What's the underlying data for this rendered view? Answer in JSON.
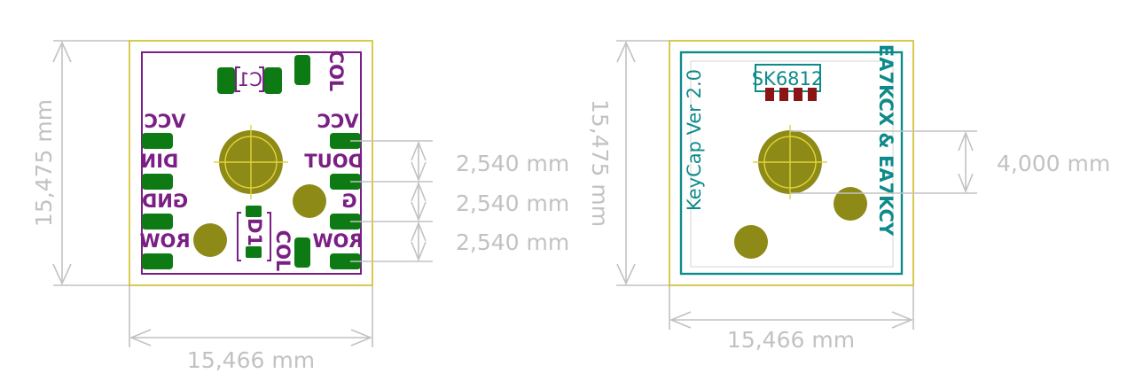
{
  "colors": {
    "dimension": "#c2c2c2",
    "board_outline": "#d3c53a",
    "back_silk": "#7a1f84",
    "front_silk": "#0f8a8a",
    "pad": "#0d7a13",
    "hole": "#8d8a17",
    "led_pad": "#8b1515",
    "marker": "#e2d33a"
  },
  "left_board": {
    "labels": {
      "c1": "C1",
      "col_top": "COL",
      "vcc_left": "VCC",
      "din": "DIN",
      "gnd": "GND",
      "row_left": "ROW",
      "vcc_right": "VCC",
      "dout": "DOUT",
      "g": "G",
      "row_right": "ROW",
      "d1": "D1",
      "col_bottom": "COL"
    },
    "dimensions": {
      "width": "15,466 mm",
      "height": "15,475 mm",
      "pitch_1": "2,540 mm",
      "pitch_2": "2,540 mm",
      "pitch_3": "2,540 mm"
    }
  },
  "right_board": {
    "labels": {
      "led": "SK6812",
      "version": "KeyCap Ver 2.0",
      "authors": "EA7KCX  & EA7KCY"
    },
    "dimensions": {
      "width": "15,466 mm",
      "height": "15,475 mm",
      "spacing": "4,000 mm"
    }
  }
}
